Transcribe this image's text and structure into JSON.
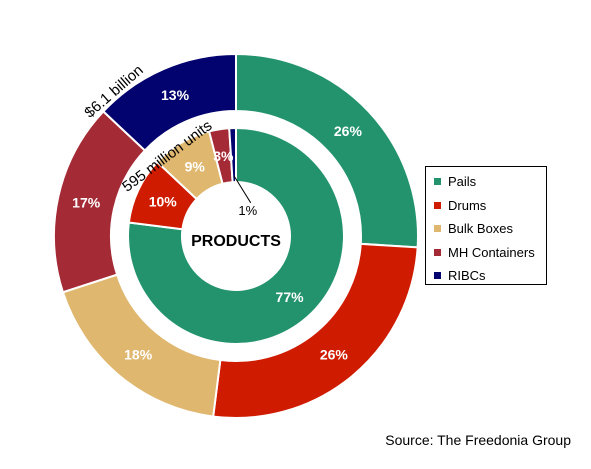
{
  "chart_data": {
    "type": "pie",
    "subtype": "nested-donut",
    "center_label": "PRODUCTS",
    "categories": [
      "Pails",
      "Drums",
      "Bulk Boxes",
      "MH Containers",
      "RIBCs"
    ],
    "colors": {
      "Pails": "#23936d",
      "Drums": "#cf1b00",
      "Bulk Boxes": "#dfb76e",
      "MH Containers": "#a42a36",
      "RIBCs": "#03036f"
    },
    "rings": [
      {
        "ring": "outer",
        "name": "$6.1 billion",
        "values": [
          26,
          26,
          18,
          17,
          13
        ],
        "labels": [
          "26%",
          "26%",
          "18%",
          "17%",
          "13%"
        ]
      },
      {
        "ring": "inner",
        "name": "595 million units",
        "values": [
          77,
          10,
          9,
          3,
          1
        ],
        "labels": [
          "77%",
          "10%",
          "9%",
          "3%",
          "1%"
        ]
      }
    ],
    "legend": {
      "position": "right",
      "entries": [
        "Pails",
        "Drums",
        "Bulk Boxes",
        "MH Containers",
        "RIBCs"
      ]
    },
    "source": "Source: The Freedonia Group"
  }
}
